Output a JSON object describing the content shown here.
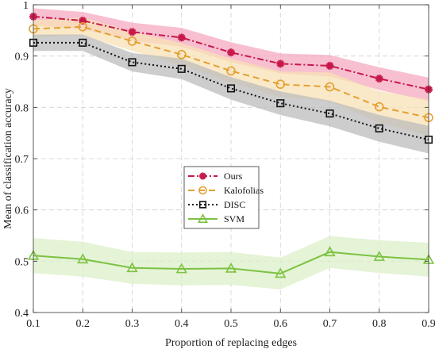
{
  "chart_data": {
    "type": "line",
    "title": "",
    "xlabel": "Proportion of replacing edges",
    "ylabel": "Mean of classification accuracy",
    "x": [
      0.1,
      0.2,
      0.3,
      0.4,
      0.5,
      0.6,
      0.7,
      0.8,
      0.9
    ],
    "xlim": [
      0.1,
      0.9
    ],
    "ylim": [
      0.4,
      1.0
    ],
    "xticks": [
      "0.1",
      "0.2",
      "0.3",
      "0.4",
      "0.5",
      "0.6",
      "0.7",
      "0.8",
      "0.9"
    ],
    "yticks": [
      "0.4",
      "0.5",
      "0.6",
      "0.7",
      "0.8",
      "0.9",
      "1"
    ],
    "grid": true,
    "legend_position": "center",
    "series": [
      {
        "name": "Ours",
        "color": "#c8184a",
        "band_color": "#f4a9c0",
        "line_style": "dash-dot",
        "marker": "asterisk",
        "values": [
          0.977,
          0.969,
          0.947,
          0.936,
          0.907,
          0.885,
          0.881,
          0.856,
          0.835
        ],
        "lower": [
          0.96,
          0.952,
          0.93,
          0.918,
          0.888,
          0.866,
          0.86,
          0.834,
          0.812
        ],
        "upper": [
          0.993,
          0.986,
          0.965,
          0.955,
          0.927,
          0.905,
          0.902,
          0.878,
          0.858
        ]
      },
      {
        "name": "Kalofolias",
        "color": "#e3a033",
        "band_color": "#f8e2b6",
        "line_style": "dashed",
        "marker": "circle",
        "values": [
          0.953,
          0.957,
          0.929,
          0.903,
          0.871,
          0.845,
          0.84,
          0.801,
          0.78
        ],
        "lower": [
          0.936,
          0.94,
          0.91,
          0.882,
          0.848,
          0.82,
          0.812,
          0.77,
          0.745
        ],
        "upper": [
          0.97,
          0.975,
          0.948,
          0.925,
          0.895,
          0.87,
          0.868,
          0.832,
          0.815
        ]
      },
      {
        "name": "DISC",
        "color": "#111111",
        "band_color": "#bcbcbc",
        "line_style": "dotted",
        "marker": "square",
        "values": [
          0.926,
          0.926,
          0.888,
          0.875,
          0.837,
          0.808,
          0.788,
          0.759,
          0.737
        ],
        "lower": [
          0.91,
          0.91,
          0.87,
          0.855,
          0.815,
          0.785,
          0.763,
          0.733,
          0.71
        ],
        "upper": [
          0.942,
          0.942,
          0.906,
          0.895,
          0.859,
          0.831,
          0.813,
          0.785,
          0.764
        ]
      },
      {
        "name": "SVM",
        "color": "#7cc242",
        "band_color": "#dcefc8",
        "line_style": "solid",
        "marker": "triangle",
        "values": [
          0.511,
          0.504,
          0.487,
          0.485,
          0.486,
          0.476,
          0.518,
          0.509,
          0.503
        ],
        "lower": [
          0.477,
          0.47,
          0.456,
          0.453,
          0.454,
          0.445,
          0.487,
          0.477,
          0.47
        ],
        "upper": [
          0.545,
          0.538,
          0.518,
          0.517,
          0.518,
          0.507,
          0.549,
          0.541,
          0.536
        ]
      }
    ]
  }
}
